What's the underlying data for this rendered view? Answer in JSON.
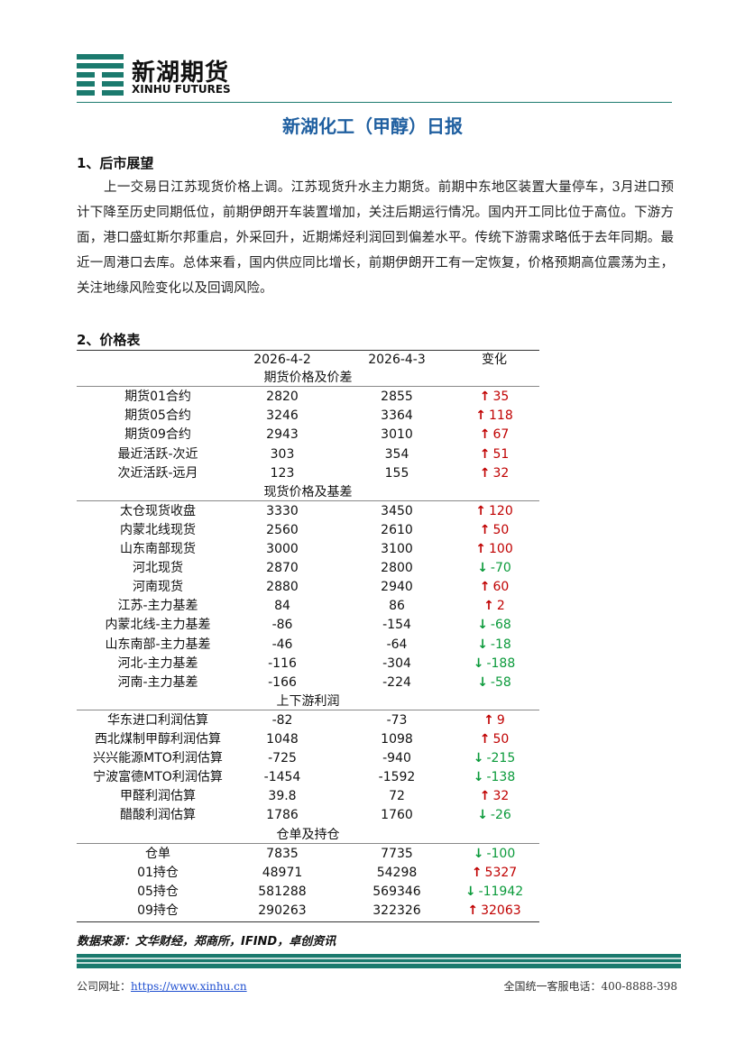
{
  "header": {
    "brand_cn": "新湖期货",
    "brand_en": "XINHU FUTURES"
  },
  "title": "新湖化工（甲醇）日报",
  "section1": {
    "heading": "1、后市展望",
    "text": "上一交易日江苏现货价格上调。江苏现货升水主力期货。前期中东地区装置大量停车，3月进口预计下降至历史同期低位，前期伊朗开车装置增加，关注后期运行情况。国内开工同比位于高位。下游方面，港口盛虹斯尔邦重启，外采回升，近期烯烃利润回到偏差水平。传统下游需求略低于去年同期。最近一周港口去库。总体来看，国内供应同比增长，前期伊朗开工有一定恢复，价格预期高位震荡为主，关注地缘风险变化以及回调风险。"
  },
  "section2": {
    "heading": "2、价格表",
    "columns": [
      "2026-4-2",
      "2026-4-3",
      "变化"
    ],
    "groups": [
      {
        "name": "期货价格及价差",
        "rows": [
          [
            "期货01合约",
            "2820",
            "2855",
            "35"
          ],
          [
            "期货05合约",
            "3246",
            "3364",
            "118"
          ],
          [
            "期货09合约",
            "2943",
            "3010",
            "67"
          ],
          [
            "最近活跃-次近",
            "303",
            "354",
            "51"
          ],
          [
            "次近活跃-远月",
            "123",
            "155",
            "32"
          ]
        ]
      },
      {
        "name": "现货价格及基差",
        "rows": [
          [
            "太仓现货收盘",
            "3330",
            "3450",
            "120"
          ],
          [
            "内蒙北线现货",
            "2560",
            "2610",
            "50"
          ],
          [
            "山东南部现货",
            "3000",
            "3100",
            "100"
          ],
          [
            "河北现货",
            "2870",
            "2800",
            "-70"
          ],
          [
            "河南现货",
            "2880",
            "2940",
            "60"
          ],
          [
            "江苏-主力基差",
            "84",
            "86",
            "2"
          ],
          [
            "内蒙北线-主力基差",
            "-86",
            "-154",
            "-68"
          ],
          [
            "山东南部-主力基差",
            "-46",
            "-64",
            "-18"
          ],
          [
            "河北-主力基差",
            "-116",
            "-304",
            "-188"
          ],
          [
            "河南-主力基差",
            "-166",
            "-224",
            "-58"
          ]
        ]
      },
      {
        "name": "上下游利润",
        "rows": [
          [
            "华东进口利润估算",
            "-82",
            "-73",
            "9"
          ],
          [
            "西北煤制甲醇利润估算",
            "1048",
            "1098",
            "50"
          ],
          [
            "兴兴能源MTO利润估算",
            "-725",
            "-940",
            "-215"
          ],
          [
            "宁波富德MTO利润估算",
            "-1454",
            "-1592",
            "-138"
          ],
          [
            "甲醛利润估算",
            "39.8",
            "72",
            "32"
          ],
          [
            "醋酸利润估算",
            "1786",
            "1760",
            "-26"
          ]
        ]
      },
      {
        "name": "仓单及持仓",
        "rows": [
          [
            "仓单",
            "7835",
            "7735",
            "-100"
          ],
          [
            "01持仓",
            "48971",
            "54298",
            "5327"
          ],
          [
            "05持仓",
            "581288",
            "569346",
            "-11942"
          ],
          [
            "09持仓",
            "290263",
            "322326",
            "32063"
          ]
        ]
      }
    ]
  },
  "source": "数据来源：文华财经，郑商所，IFIND，卓创资讯",
  "footer": {
    "website_label": "公司网址：",
    "website": "https://www.xinhu.cn",
    "hotline": "全国统一客服电话：400-8888-398"
  }
}
